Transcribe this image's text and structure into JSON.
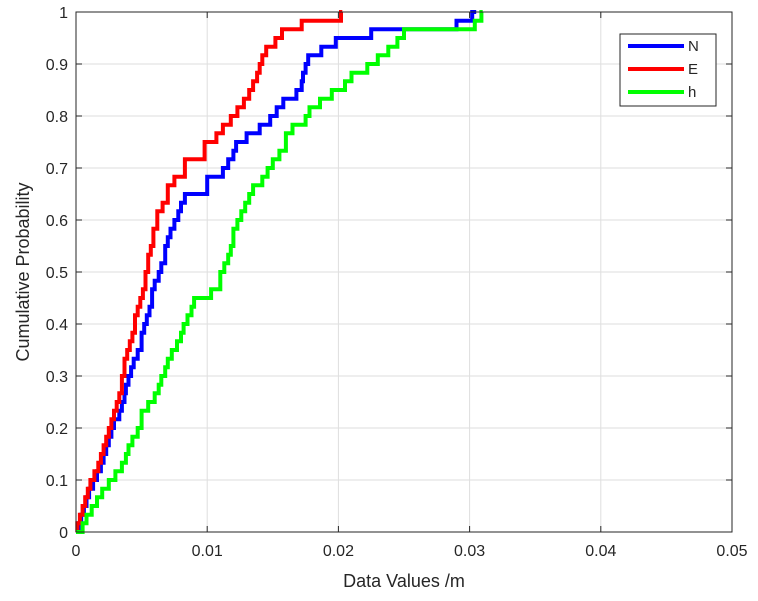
{
  "chart_data": {
    "type": "line",
    "title": "",
    "xlabel": "Data Values /m",
    "ylabel": "Cumulative Probability",
    "xlim": [
      0,
      0.05
    ],
    "ylim": [
      0,
      1
    ],
    "xticks": [
      0,
      0.01,
      0.02,
      0.03,
      0.04,
      0.05
    ],
    "xtick_labels": [
      "0",
      "0.01",
      "0.02",
      "0.03",
      "0.04",
      "0.05"
    ],
    "yticks": [
      0,
      0.1,
      0.2,
      0.3,
      0.4,
      0.5,
      0.6,
      0.7,
      0.8,
      0.9,
      1
    ],
    "ytick_labels": [
      "0",
      "0.1",
      "0.2",
      "0.3",
      "0.4",
      "0.5",
      "0.6",
      "0.7",
      "0.8",
      "0.9",
      "1"
    ],
    "grid": true,
    "legend_position": "top-right",
    "series": [
      {
        "name": "N",
        "color": "#0000ff",
        "x": [
          0,
          0.0002,
          0.0004,
          0.0006,
          0.0008,
          0.001,
          0.0013,
          0.0016,
          0.0019,
          0.0021,
          0.0023,
          0.0025,
          0.0027,
          0.0029,
          0.003,
          0.0033,
          0.0035,
          0.0037,
          0.0038,
          0.004,
          0.0042,
          0.0044,
          0.0047,
          0.005,
          0.0052,
          0.0054,
          0.0056,
          0.0058,
          0.006,
          0.0063,
          0.0065,
          0.0068,
          0.007,
          0.0072,
          0.0075,
          0.0078,
          0.008,
          0.0083,
          0.0086,
          0.01,
          0.0112,
          0.0116,
          0.012,
          0.0122,
          0.0124,
          0.0127,
          0.013,
          0.0135,
          0.014,
          0.0148,
          0.015,
          0.0153,
          0.0158,
          0.0168,
          0.0172,
          0.0173,
          0.0175,
          0.0177,
          0.018,
          0.0183,
          0.0187,
          0.0198,
          0.0202,
          0.0225,
          0.0228,
          0.029,
          0.0292,
          0.0302,
          0.0305
        ],
        "y": [
          0,
          0.017,
          0.033,
          0.05,
          0.067,
          0.083,
          0.1,
          0.117,
          0.133,
          0.15,
          0.167,
          0.183,
          0.2,
          0.217,
          0.217,
          0.233,
          0.25,
          0.267,
          0.283,
          0.3,
          0.317,
          0.333,
          0.35,
          0.383,
          0.4,
          0.417,
          0.433,
          0.467,
          0.483,
          0.5,
          0.517,
          0.55,
          0.567,
          0.583,
          0.6,
          0.617,
          0.633,
          0.65,
          0.65,
          0.683,
          0.7,
          0.717,
          0.733,
          0.75,
          0.75,
          0.75,
          0.767,
          0.767,
          0.783,
          0.8,
          0.8,
          0.817,
          0.833,
          0.85,
          0.867,
          0.883,
          0.9,
          0.917,
          0.917,
          0.917,
          0.933,
          0.95,
          0.95,
          0.967,
          0.967,
          0.983,
          0.983,
          1,
          1
        ]
      },
      {
        "name": "E",
        "color": "#ff0000",
        "x": [
          0,
          0.0001,
          0.0003,
          0.0005,
          0.0007,
          0.0009,
          0.0011,
          0.0014,
          0.0017,
          0.0019,
          0.0021,
          0.0023,
          0.0025,
          0.0027,
          0.0029,
          0.0031,
          0.0033,
          0.0035,
          0.0037,
          0.0039,
          0.0041,
          0.0043,
          0.0045,
          0.0047,
          0.0049,
          0.0051,
          0.0053,
          0.0055,
          0.0057,
          0.0059,
          0.0062,
          0.0066,
          0.007,
          0.0075,
          0.0083,
          0.0085,
          0.0098,
          0.0102,
          0.0107,
          0.0112,
          0.0118,
          0.0123,
          0.0128,
          0.0132,
          0.0135,
          0.0138,
          0.014,
          0.0142,
          0.0145,
          0.0152,
          0.0157,
          0.0158,
          0.0172,
          0.0178,
          0.019,
          0.0202,
          0.0203
        ],
        "y": [
          0,
          0.017,
          0.033,
          0.05,
          0.067,
          0.083,
          0.1,
          0.117,
          0.133,
          0.15,
          0.167,
          0.183,
          0.2,
          0.217,
          0.233,
          0.25,
          0.267,
          0.3,
          0.333,
          0.35,
          0.367,
          0.383,
          0.417,
          0.433,
          0.45,
          0.467,
          0.5,
          0.533,
          0.55,
          0.583,
          0.617,
          0.633,
          0.667,
          0.683,
          0.717,
          0.717,
          0.75,
          0.75,
          0.767,
          0.783,
          0.8,
          0.817,
          0.833,
          0.85,
          0.867,
          0.883,
          0.9,
          0.917,
          0.933,
          0.95,
          0.967,
          0.967,
          0.983,
          0.983,
          0.983,
          1,
          1
        ]
      },
      {
        "name": "h",
        "color": "#00ff00",
        "x": [
          0,
          0.0005,
          0.0008,
          0.0012,
          0.0016,
          0.002,
          0.0025,
          0.003,
          0.0035,
          0.0038,
          0.004,
          0.0043,
          0.0047,
          0.005,
          0.0055,
          0.006,
          0.0063,
          0.0065,
          0.0068,
          0.007,
          0.0073,
          0.0077,
          0.008,
          0.0082,
          0.0085,
          0.0088,
          0.009,
          0.0093,
          0.0097,
          0.0103,
          0.011,
          0.0113,
          0.0116,
          0.0118,
          0.012,
          0.0123,
          0.0126,
          0.0129,
          0.0132,
          0.0135,
          0.0138,
          0.0142,
          0.0146,
          0.015,
          0.0155,
          0.016,
          0.0165,
          0.017,
          0.0175,
          0.0178,
          0.0182,
          0.0186,
          0.019,
          0.0195,
          0.02,
          0.0205,
          0.021,
          0.0215,
          0.0222,
          0.023,
          0.0238,
          0.0245,
          0.025,
          0.0255,
          0.0257,
          0.0301,
          0.0304,
          0.0309,
          0.031
        ],
        "y": [
          0,
          0.017,
          0.033,
          0.05,
          0.067,
          0.083,
          0.1,
          0.117,
          0.133,
          0.15,
          0.167,
          0.183,
          0.2,
          0.233,
          0.25,
          0.267,
          0.283,
          0.3,
          0.317,
          0.333,
          0.35,
          0.367,
          0.383,
          0.4,
          0.417,
          0.433,
          0.45,
          0.45,
          0.45,
          0.467,
          0.5,
          0.517,
          0.533,
          0.55,
          0.583,
          0.6,
          0.617,
          0.633,
          0.65,
          0.667,
          0.667,
          0.683,
          0.7,
          0.717,
          0.733,
          0.767,
          0.783,
          0.783,
          0.8,
          0.817,
          0.817,
          0.833,
          0.833,
          0.85,
          0.85,
          0.867,
          0.883,
          0.883,
          0.9,
          0.917,
          0.933,
          0.95,
          0.967,
          0.967,
          0.967,
          0.967,
          0.983,
          1,
          1
        ]
      }
    ]
  }
}
